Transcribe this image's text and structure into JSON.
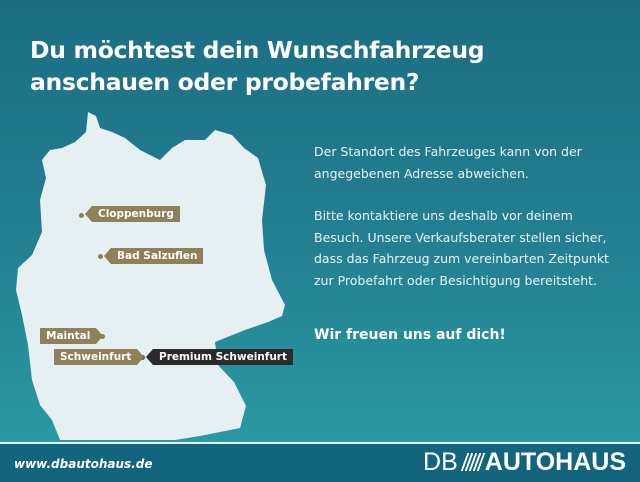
{
  "header": {
    "title_line1": "Du möchtest dein Wunschfahrzeug",
    "title_line2": "anschauen oder probefahren?"
  },
  "map": {
    "locations": [
      {
        "label": "Cloppenburg"
      },
      {
        "label": "Bad Salzuflen"
      },
      {
        "label": "Maintal"
      },
      {
        "label": "Schweinfurt"
      },
      {
        "label": "Premium Schweinfurt"
      }
    ],
    "colors": {
      "tag": "#8e8058",
      "premium_tag": "#2b2b2b",
      "land": "#e6f0f2"
    }
  },
  "info": {
    "paragraph1": "Der Standort des Fahrzeuges kann von der angegebenen Adresse abweichen.",
    "paragraph2": "Bitte kontaktiere uns deshalb vor deinem Besuch. Unsere Verkaufsberater stellen sicher, dass das Fahrzeug zum vereinbarten Zeitpunkt zur Probefahrt oder Besichtigung bereitsteht.",
    "cta": "Wir freuen uns auf dich!"
  },
  "footer": {
    "url": "www.dbautohaus.de",
    "logo_prefix": "DB",
    "logo_name": "AUTOHAUS"
  }
}
